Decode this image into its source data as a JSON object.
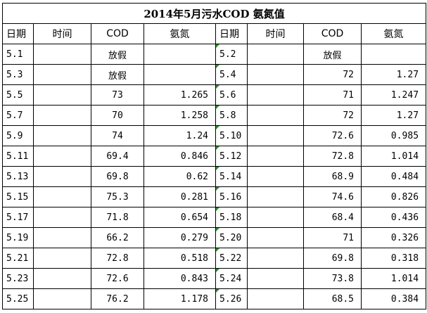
{
  "title": "2014年5月污水COD 氨氮值",
  "headers": [
    "日期",
    "时间",
    "COD",
    "氨氮",
    "日期",
    "时间",
    "COD",
    "氨氮"
  ],
  "rows": [
    [
      "5.1",
      "",
      "放假",
      "",
      "5.2",
      "",
      "放假",
      ""
    ],
    [
      "5.3",
      "",
      "放假",
      "",
      "5.4",
      "",
      "72",
      "1.27"
    ],
    [
      "5.5",
      "",
      "73",
      "1.265",
      "5.6",
      "",
      "71",
      "1.247"
    ],
    [
      "5.7",
      "",
      "70",
      "1.258",
      "5.8",
      "",
      "72",
      "1.27"
    ],
    [
      "5.9",
      "",
      "74",
      "1.24",
      "5.10",
      "",
      "72.6",
      "0.985"
    ],
    [
      "5.11",
      "",
      "69.4",
      "0.846",
      "5.12",
      "",
      "72.8",
      "1.014"
    ],
    [
      "5.13",
      "",
      "69.8",
      "0.62",
      "5.14",
      "",
      "68.9",
      "0.484"
    ],
    [
      "5.15",
      "",
      "75.3",
      "0.281",
      "5.16",
      "",
      "74.6",
      "0.826"
    ],
    [
      "5.17",
      "",
      "71.8",
      "0.654",
      "5.18",
      "",
      "68.4",
      "0.436"
    ],
    [
      "5.19",
      "",
      "66.2",
      "0.279",
      "5.20",
      "",
      "71",
      "0.326"
    ],
    [
      "5.21",
      "",
      "72.8",
      "0.518",
      "5.22",
      "",
      "69.8",
      "0.318"
    ],
    [
      "5.23",
      "",
      "72.6",
      "0.843",
      "5.24",
      "",
      "73.8",
      "1.014"
    ],
    [
      "5.25",
      "",
      "76.2",
      "1.178",
      "5.26",
      "",
      "68.5",
      "0.384"
    ]
  ],
  "colors": {
    "border": "#000000",
    "cell_marker": "#2e8b2e"
  }
}
